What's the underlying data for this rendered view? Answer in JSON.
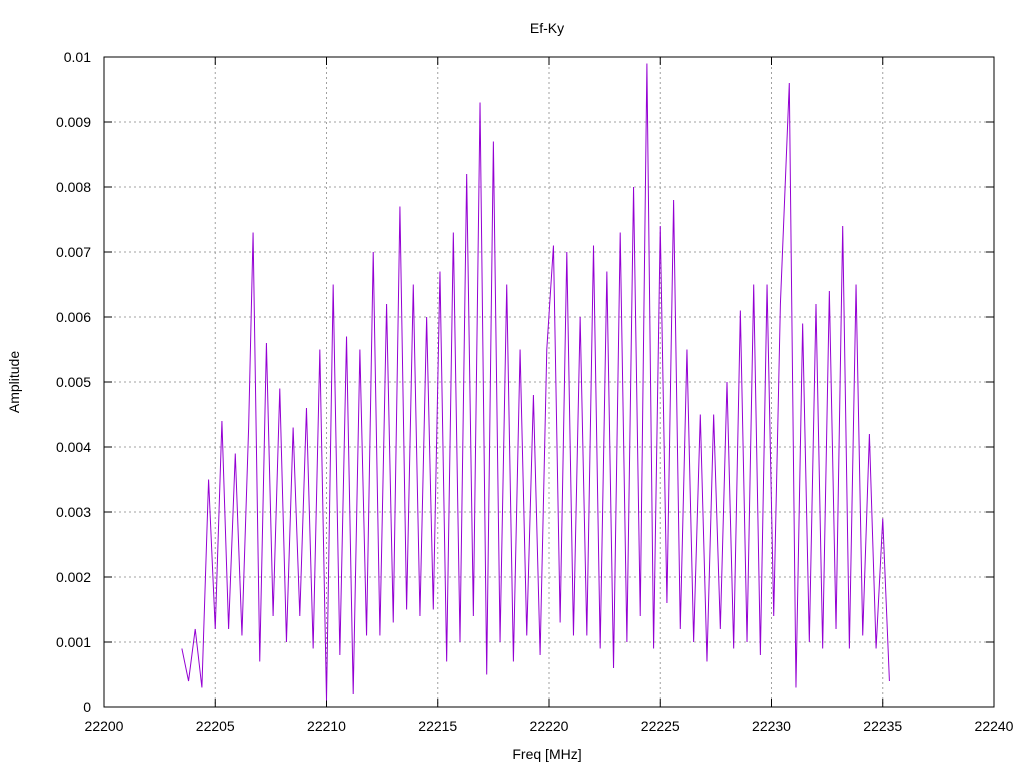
{
  "chart_data": {
    "type": "line",
    "title": "Ef-Ky",
    "xlabel": "Freq [MHz]",
    "ylabel": "Amplitude",
    "xlim": [
      22200,
      22240
    ],
    "ylim": [
      0,
      0.01
    ],
    "x_ticks": [
      22200,
      22205,
      22210,
      22215,
      22220,
      22225,
      22230,
      22235,
      22240
    ],
    "y_ticks": [
      0,
      0.001,
      0.002,
      0.003,
      0.004,
      0.005,
      0.006,
      0.007,
      0.008,
      0.009,
      0.01
    ],
    "x_tick_labels": [
      "22200",
      "22205",
      "22210",
      "22215",
      "22220",
      "22225",
      "22230",
      "22235",
      "22240"
    ],
    "y_tick_labels": [
      "0",
      "0.001",
      "0.002",
      "0.003",
      "0.004",
      "0.005",
      "0.006",
      "0.007",
      "0.008",
      "0.009",
      "0.01"
    ],
    "grid": true,
    "legend": "none",
    "series": [
      {
        "color": "#9400d3",
        "x": [
          22203.5,
          22203.8,
          22204.1,
          22204.4,
          22204.7,
          22205.0,
          22205.3,
          22205.6,
          22205.9,
          22206.2,
          22206.5,
          22206.7,
          22207.0,
          22207.3,
          22207.6,
          22207.9,
          22208.2,
          22208.5,
          22208.8,
          22209.1,
          22209.4,
          22209.7,
          22210.0,
          22210.3,
          22210.6,
          22210.9,
          22211.2,
          22211.5,
          22211.8,
          22212.1,
          22212.4,
          22212.7,
          22213.0,
          22213.3,
          22213.6,
          22213.9,
          22214.2,
          22214.5,
          22214.8,
          22215.1,
          22215.4,
          22215.7,
          22216.0,
          22216.3,
          22216.6,
          22216.9,
          22217.2,
          22217.5,
          22217.8,
          22218.1,
          22218.4,
          22218.7,
          22219.0,
          22219.3,
          22219.6,
          22219.9,
          22220.2,
          22220.5,
          22220.8,
          22221.1,
          22221.4,
          22221.7,
          22222.0,
          22222.3,
          22222.6,
          22222.9,
          22223.2,
          22223.5,
          22223.8,
          22224.1,
          22224.4,
          22224.7,
          22225.0,
          22225.3,
          22225.6,
          22225.9,
          22226.2,
          22226.5,
          22226.8,
          22227.1,
          22227.4,
          22227.7,
          22228.0,
          22228.3,
          22228.6,
          22228.9,
          22229.2,
          22229.5,
          22229.8,
          22230.1,
          22230.4,
          22230.8,
          22231.1,
          22231.4,
          22231.7,
          22232.0,
          22232.3,
          22232.6,
          22232.9,
          22233.2,
          22233.5,
          22233.8,
          22234.1,
          22234.4,
          22234.7,
          22235.0,
          22235.3
        ],
        "values": [
          0.0009,
          0.0004,
          0.0012,
          0.0003,
          0.0035,
          0.0012,
          0.0044,
          0.0012,
          0.0039,
          0.0011,
          0.0043,
          0.0073,
          0.0007,
          0.0056,
          0.0014,
          0.0049,
          0.001,
          0.0043,
          0.0014,
          0.0046,
          0.0009,
          0.0055,
          0.0001,
          0.0065,
          0.0008,
          0.0057,
          0.0002,
          0.0055,
          0.0011,
          0.007,
          0.0011,
          0.0062,
          0.0013,
          0.0077,
          0.0015,
          0.0065,
          0.0014,
          0.006,
          0.0015,
          0.0067,
          0.0007,
          0.0073,
          0.001,
          0.0082,
          0.0014,
          0.0093,
          0.0005,
          0.0087,
          0.001,
          0.0065,
          0.0007,
          0.0055,
          0.0011,
          0.0048,
          0.0008,
          0.0055,
          0.0071,
          0.0013,
          0.007,
          0.0011,
          0.006,
          0.0011,
          0.0071,
          0.0009,
          0.0067,
          0.0006,
          0.0073,
          0.001,
          0.008,
          0.0014,
          0.0099,
          0.0009,
          0.0074,
          0.0016,
          0.0078,
          0.0012,
          0.0055,
          0.001,
          0.0045,
          0.0007,
          0.0045,
          0.0012,
          0.005,
          0.0009,
          0.0061,
          0.001,
          0.0065,
          0.0008,
          0.0065,
          0.0014,
          0.0062,
          0.0096,
          0.0003,
          0.0059,
          0.001,
          0.0062,
          0.0009,
          0.0064,
          0.0012,
          0.0074,
          0.0009,
          0.0065,
          0.0011,
          0.0042,
          0.0009,
          0.0029,
          0.0004
        ]
      }
    ]
  }
}
